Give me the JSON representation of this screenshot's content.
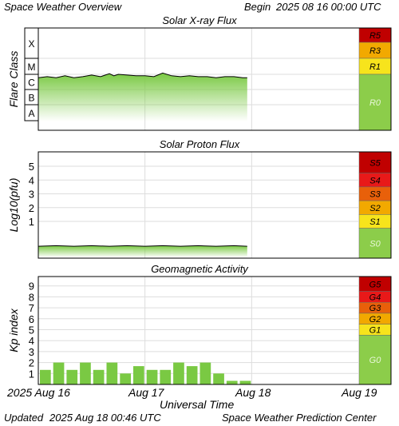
{
  "header": {
    "title": "Space Weather Overview",
    "begin_label": "Begin",
    "begin_value": "2025 08 16 00:00 UTC"
  },
  "footer": {
    "updated_label": "Updated",
    "updated_value": "2025 Aug 18 00:46 UTC",
    "source": "Space Weather Prediction Center"
  },
  "time_axis": {
    "label": "Universal Time",
    "ticks": [
      "2025 Aug 16",
      "Aug 17",
      "Aug 18",
      "Aug 19"
    ]
  },
  "colors": {
    "data_green": "#7ac943",
    "quiet_green": "#8ccd4a",
    "yellow": "#f7e41c",
    "orange": "#f2a900",
    "red_orange": "#e8600a",
    "red": "#e81919",
    "dark_red": "#c00000"
  },
  "chart_data": [
    {
      "type": "area",
      "title": "Solar X-ray Flux",
      "ylabel": "Flare Class",
      "y_scale": "log",
      "y_categories": [
        "A",
        "B",
        "C",
        "M",
        "X"
      ],
      "x_unit": "hours since 2025-08-16 00:00 UTC",
      "xlim": [
        0,
        72
      ],
      "x": [
        0,
        2,
        4,
        6,
        8,
        10,
        12,
        14,
        16,
        17,
        18,
        20,
        22,
        24,
        26,
        28,
        30,
        32,
        34,
        36,
        38,
        40,
        42,
        44,
        46,
        47
      ],
      "y": [
        "B6",
        "B7",
        "B6",
        "B8",
        "B6",
        "B7",
        "B9",
        "B7",
        "C1.1",
        "B8",
        "C1",
        "B9",
        "B8",
        "B8",
        "B7",
        "C1.2",
        "B8",
        "B7",
        "B8",
        "B7",
        "B7",
        "B6",
        "B7",
        "B7",
        "B6",
        "B6"
      ],
      "scale_labels": [
        "R5",
        "R3",
        "R1",
        "R0"
      ],
      "scale_colors": [
        "#c00000",
        "#f2a900",
        "#f7e41c",
        "#8ccd4a"
      ]
    },
    {
      "type": "area",
      "title": "Solar Proton Flux",
      "ylabel": "Log10(pfu)",
      "y_scale": "log",
      "ylim": [
        -1.5,
        5.8
      ],
      "yticks": [
        1,
        2,
        3,
        4,
        5
      ],
      "x_unit": "hours since 2025-08-16 00:00 UTC",
      "xlim": [
        0,
        72
      ],
      "x": [
        0,
        4,
        8,
        12,
        16,
        20,
        24,
        28,
        32,
        36,
        40,
        44,
        47
      ],
      "y": [
        -0.8,
        -0.8,
        -0.8,
        -0.8,
        -0.8,
        -0.8,
        -0.8,
        -0.8,
        -0.8,
        -0.8,
        -0.8,
        -0.8,
        -0.8
      ],
      "scale_labels": [
        "S5",
        "S4",
        "S3",
        "S2",
        "S1",
        "S0"
      ],
      "scale_colors": [
        "#c00000",
        "#e81919",
        "#e8600a",
        "#f2a900",
        "#f7e41c",
        "#8ccd4a"
      ]
    },
    {
      "type": "bar",
      "title": "Geomagnetic Activity",
      "ylabel": "Kp index",
      "ylim": [
        0,
        10
      ],
      "yticks": [
        1,
        2,
        3,
        4,
        5,
        6,
        7,
        8,
        9
      ],
      "x_unit": "3-hour intervals starting 2025-08-16 00:00 UTC",
      "xlim": [
        0,
        24
      ],
      "values": [
        1.33,
        2.0,
        1.33,
        2.0,
        1.33,
        2.0,
        1.0,
        1.67,
        1.33,
        1.33,
        2.0,
        1.67,
        2.0,
        1.0,
        0.33,
        0.33
      ],
      "scale_labels": [
        "G5",
        "G4",
        "G3",
        "G2",
        "G1",
        "G0"
      ],
      "scale_colors": [
        "#c00000",
        "#e81919",
        "#e8600a",
        "#f2a900",
        "#f7e41c",
        "#8ccd4a"
      ]
    }
  ]
}
